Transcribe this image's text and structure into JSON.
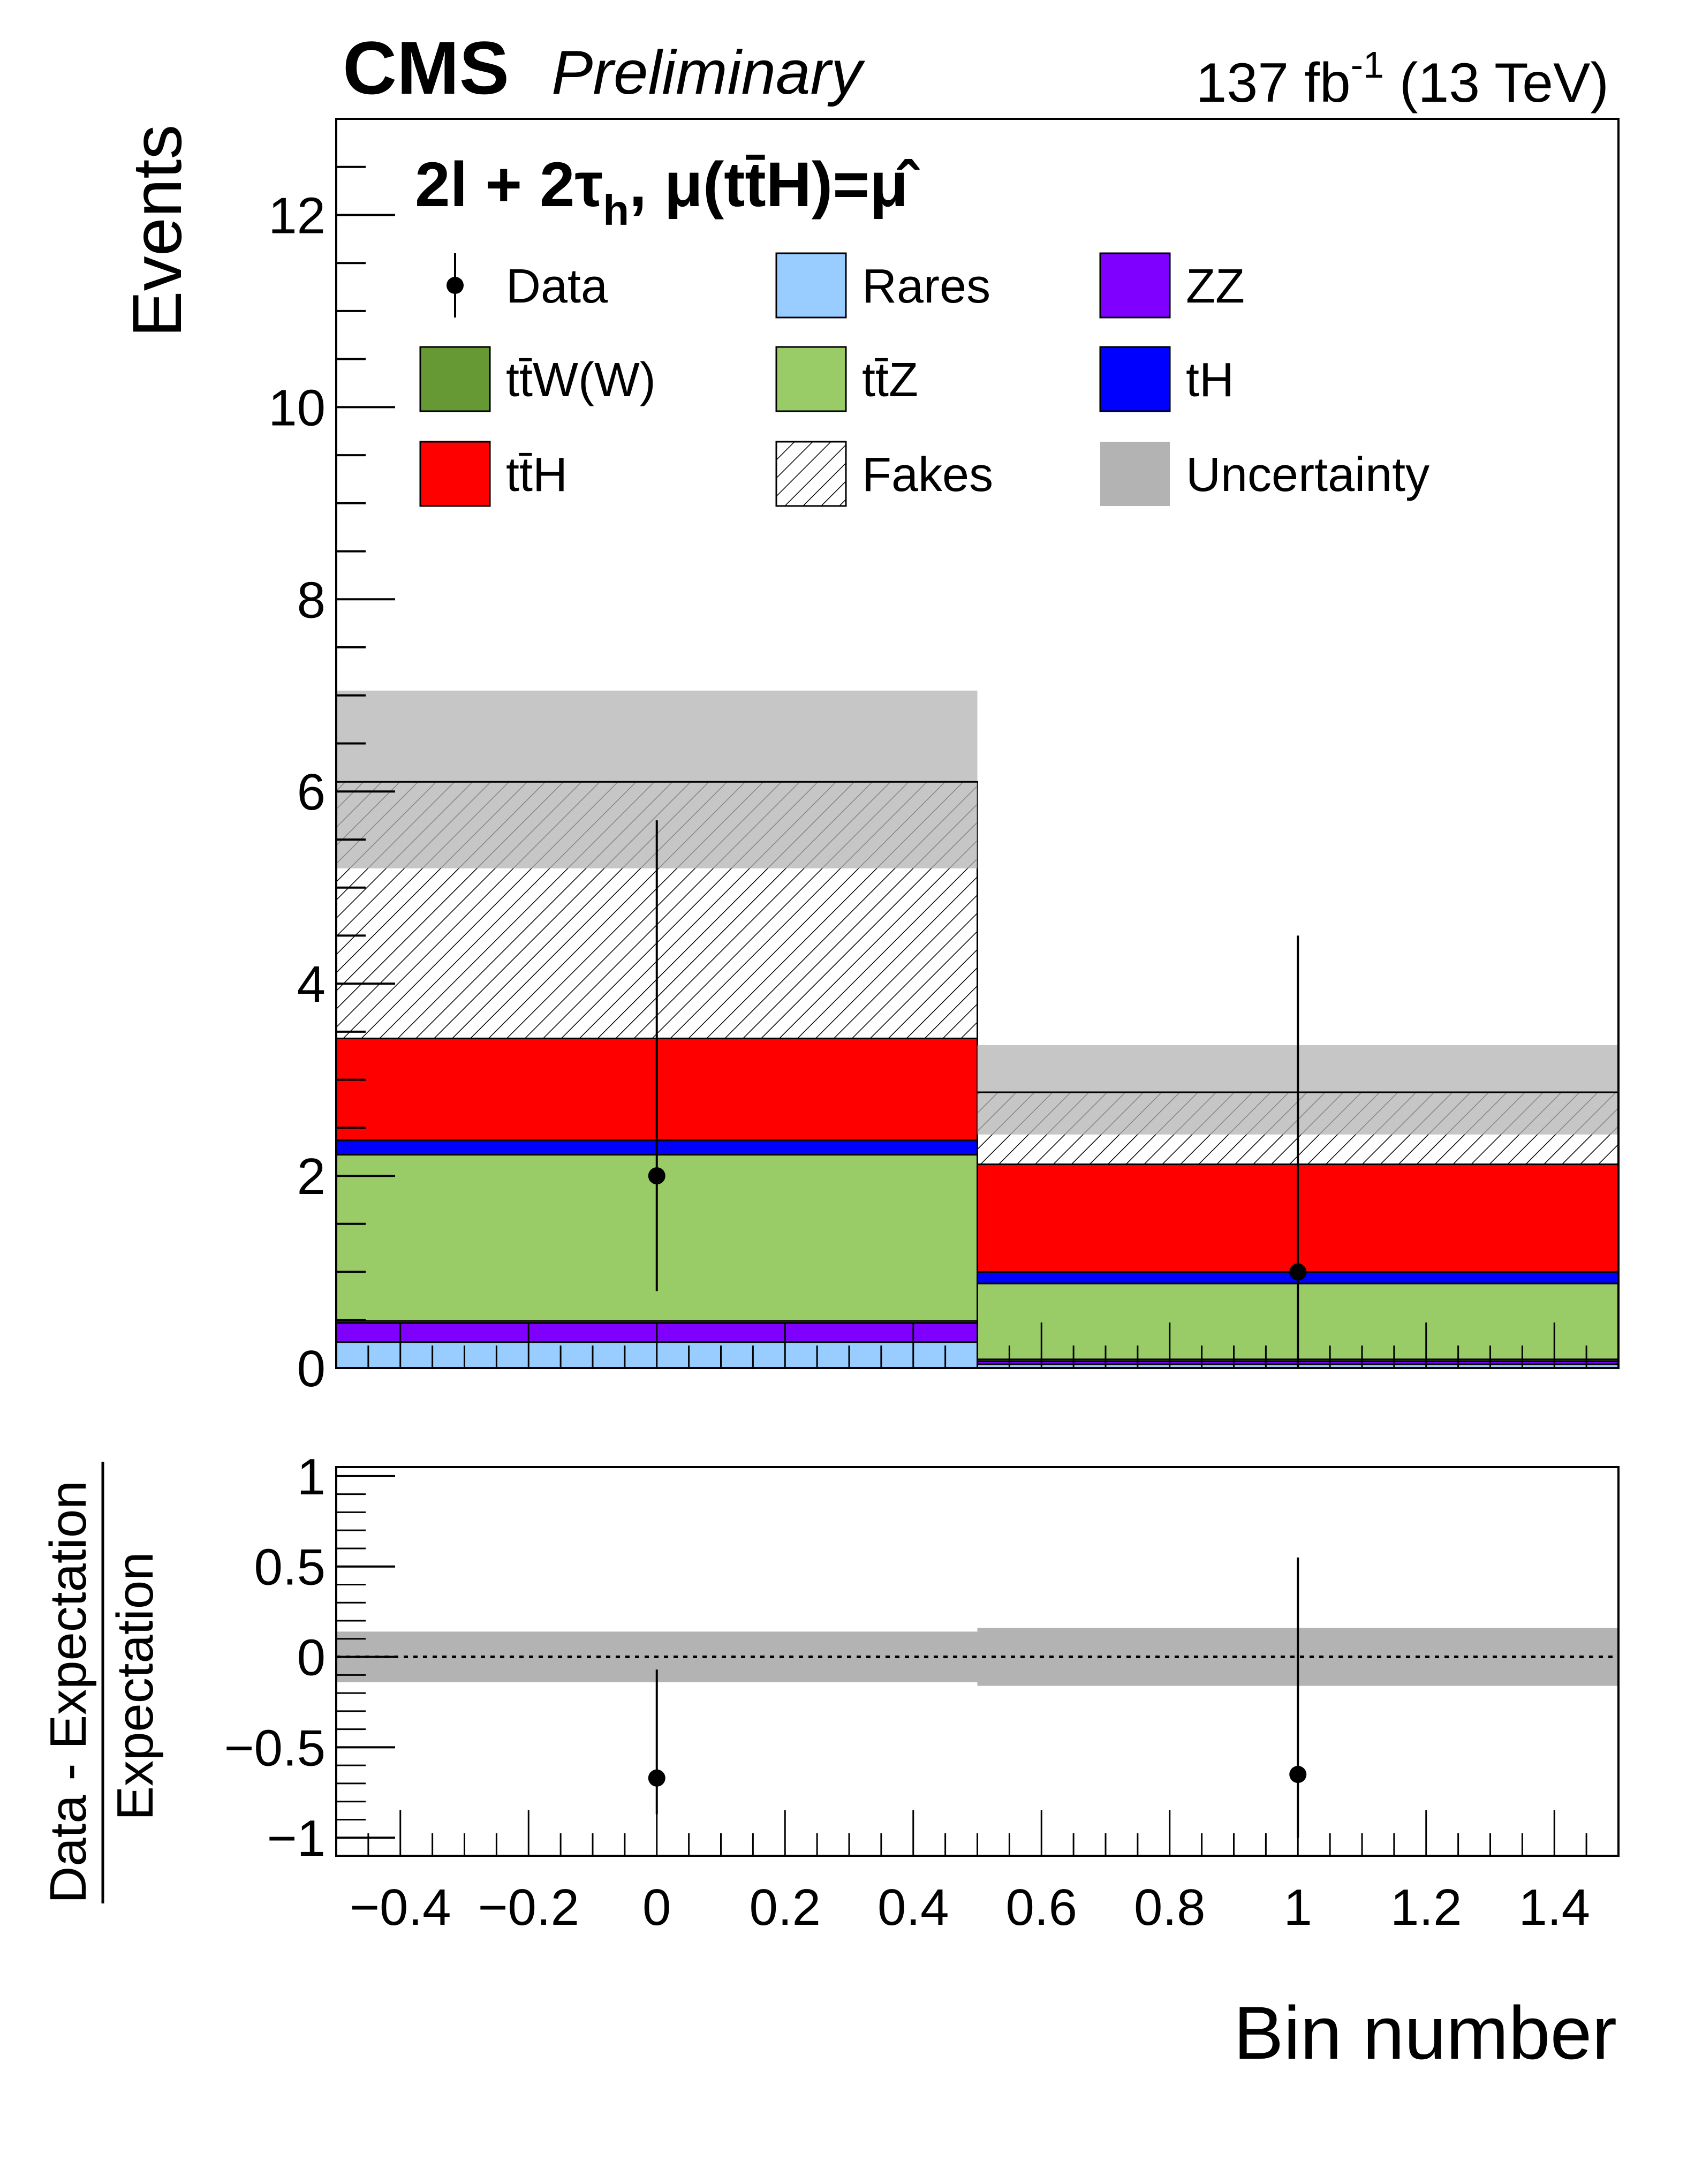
{
  "header": {
    "experiment": "CMS",
    "status": "Preliminary",
    "lumi_value": "137 fb",
    "lumi_exp": "-1",
    "energy": " (13 TeV)"
  },
  "colors": {
    "Rares": "#99ccff",
    "ZZ": "#8000ff",
    "ttW(W)": "#669933",
    "ttZ": "#99cc66",
    "tH": "#0000ff",
    "ttH": "#ff0000",
    "Fakes": "#ffffff",
    "Uncertainty": "#b3b3b3",
    "Data": "#000000"
  },
  "chart_data": [
    {
      "type": "bar",
      "stacked": true,
      "title": "2l + 2τh, μ(tt̄H)=μ̂",
      "title_parts": {
        "main": "2l + 2τ",
        "sub": "h",
        "mu": ", μ(tt̄H)=μ̂"
      },
      "xlabel": "Bin number",
      "ylabel": "Events",
      "xlim": [
        -0.5,
        1.5
      ],
      "ylim": [
        0,
        13
      ],
      "bin_edges": [
        -0.5,
        0.5,
        1.5
      ],
      "x_ticks": [
        "−0.4",
        "−0.2",
        "0",
        "0.2",
        "0.4",
        "0.6",
        "0.8",
        "1",
        "1.2",
        "1.4"
      ],
      "y_ticks": [
        "0",
        "2",
        "4",
        "6",
        "8",
        "10",
        "12"
      ],
      "series": [
        {
          "name": "Rares",
          "values": [
            0.27,
            0.04
          ]
        },
        {
          "name": "ZZ",
          "values": [
            0.2,
            0.03
          ]
        },
        {
          "name": "tt̄W(W)",
          "values": [
            0.02,
            0.02
          ]
        },
        {
          "name": "tt̄Z",
          "values": [
            1.73,
            0.79
          ]
        },
        {
          "name": "tH",
          "values": [
            0.15,
            0.12
          ]
        },
        {
          "name": "tt̄H",
          "values": [
            1.06,
            1.12
          ]
        },
        {
          "name": "Fakes",
          "values": [
            2.67,
            0.75
          ]
        }
      ],
      "total": [
        6.1,
        2.87
      ],
      "uncertainty_band": [
        [
          5.2,
          7.05
        ],
        [
          2.43,
          3.36
        ]
      ],
      "data": {
        "x": [
          0,
          1
        ],
        "y": [
          2,
          1
        ],
        "err_low": [
          1.2,
          1.0
        ],
        "err_high": [
          3.7,
          3.5
        ]
      },
      "legend": {
        "placement": "top",
        "entries": [
          "Data",
          "Rares",
          "ZZ",
          "tt̄W(W)",
          "tt̄Z",
          "tH",
          "tt̄H",
          "Fakes",
          "Uncertainty"
        ]
      }
    },
    {
      "type": "scatter",
      "xlabel": "Bin number",
      "ylabel_numerator": "Data - Expectation",
      "ylabel_denominator": "Expectation",
      "xlim": [
        -0.5,
        1.5
      ],
      "ylim": [
        -1.1,
        1.05
      ],
      "y_ticks": [
        "1",
        "0.5",
        "0",
        "−0.5",
        "−1"
      ],
      "reference_line": 0,
      "uncertainty_band": [
        [
          -0.14,
          0.14
        ],
        [
          -0.16,
          0.16
        ]
      ],
      "data": {
        "x": [
          0,
          1
        ],
        "y": [
          -0.67,
          -0.65
        ],
        "err_low": [
          0.2,
          0.35
        ],
        "err_high": [
          0.6,
          1.2
        ]
      }
    }
  ]
}
